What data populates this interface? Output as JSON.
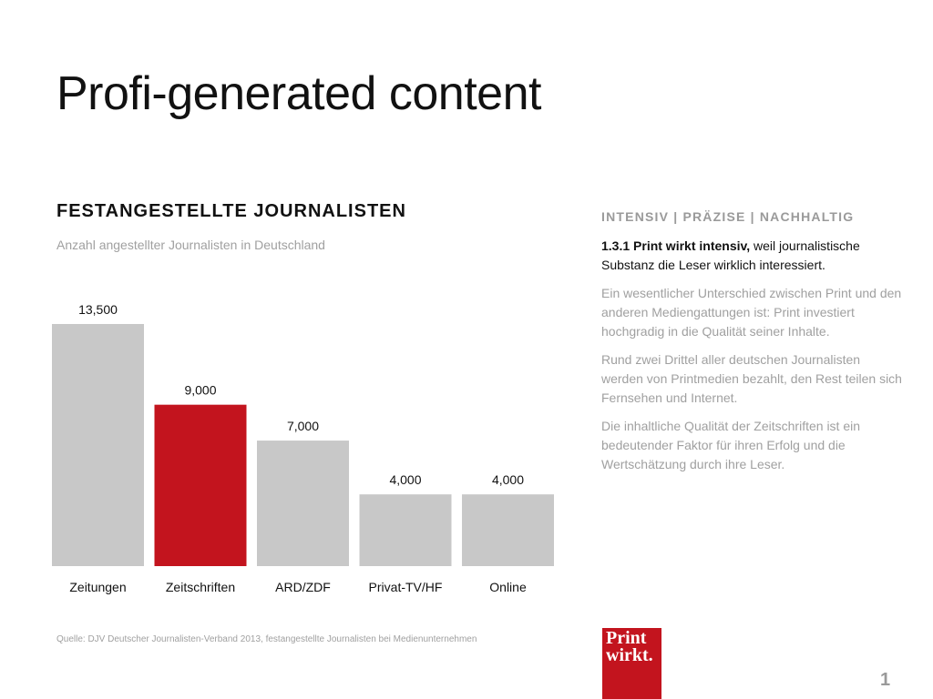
{
  "slide": {
    "title": "Profi-generated content",
    "page_number": "1"
  },
  "chart_section": {
    "heading": "FESTANGESTELLTE JOURNALISTEN",
    "subtitle": "Anzahl angestellter Journalisten in Deutschland",
    "source": "Quelle: DJV Deutscher Journalisten-Verband 2013, festangestellte Journalisten bei Medienunternehmen"
  },
  "chart_data": {
    "type": "bar",
    "title": "FESTANGESTELLTE JOURNALISTEN",
    "subtitle": "Anzahl angestellter Journalisten in Deutschland",
    "categories": [
      "Zeitungen",
      "Zeitschriften",
      "ARD/ZDF",
      "Privat-TV/HF",
      "Online"
    ],
    "values": [
      13500,
      9000,
      7000,
      4000,
      4000
    ],
    "value_labels": [
      "13,500",
      "9,000",
      "7,000",
      "4,000",
      "4,000"
    ],
    "highlight_index": 1,
    "colors": {
      "default": "#c8c8c8",
      "highlight": "#c3141e"
    },
    "xlabel": "",
    "ylabel": "",
    "ylim": [
      0,
      13500
    ],
    "grid": false,
    "legend": "none"
  },
  "side_panel": {
    "tagline": "INTENSIV | PRÄZISE | NACHHALTIG",
    "lead_bold": "1.3.1 Print wirkt intensiv,",
    "lead_rest": " weil journalistische Substanz die Leser wirklich interessiert.",
    "paragraphs": [
      "Ein wesentlicher Unterschied zwischen Print und den anderen Mediengattungen ist: Print investiert hochgradig in die Qualität seiner Inhalte.",
      "Rund zwei Drittel aller deutschen Journalisten werden von Printmedien bezahlt, den Rest teilen sich Fernsehen und Internet.",
      "Die inhaltliche Qualität der Zeitschriften ist ein bedeutender Faktor für ihren Erfolg und die Wertschätzung durch ihre Leser."
    ]
  },
  "logo": {
    "line1": "Print",
    "line2": "wirkt.",
    "color": "#c3141e"
  }
}
